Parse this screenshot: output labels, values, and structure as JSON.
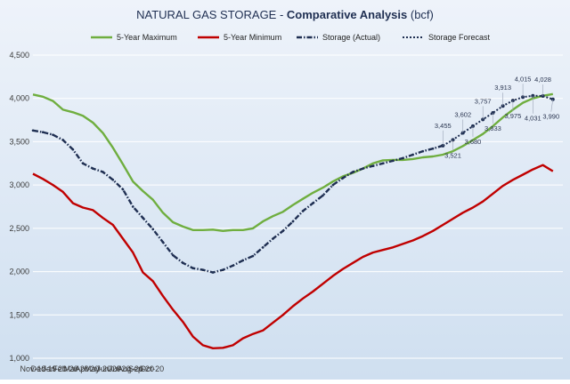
{
  "chart_data": {
    "type": "line",
    "title_prefix": "NATURAL GAS STORAGE - ",
    "title_bold": "Comparative Analysis",
    "title_suffix": " (bcf)",
    "title": "NATURAL GAS STORAGE - Comparative Analysis (bcf)",
    "xlabel": "",
    "ylabel": "",
    "ylim": [
      1000,
      4500
    ],
    "y_ticks": [
      "1,000",
      "1,500",
      "2,000",
      "2,500",
      "3,000",
      "3,500",
      "4,000",
      "4,500"
    ],
    "x_ticks": [
      "Nov-19",
      "Dec-19",
      "Jan-20",
      "Feb-20",
      "Mar-20",
      "Apr-20",
      "May-20",
      "Jun-20",
      "Jul-20",
      "Aug-20",
      "Sep-20",
      "Oct-20"
    ],
    "grid": true,
    "legend_position": "top",
    "colors": {
      "max": "#6fae3f",
      "min": "#c00000",
      "actual": "#1f2f52",
      "forecast": "#1f2f52"
    },
    "series": [
      {
        "name": "5-Year Maximum",
        "key": "max",
        "values": [
          [
            0,
            4045
          ],
          [
            4,
            4020
          ],
          [
            8,
            3970
          ],
          [
            12,
            3870
          ],
          [
            16,
            3840
          ],
          [
            20,
            3800
          ],
          [
            24,
            3720
          ],
          [
            28,
            3600
          ],
          [
            32,
            3430
          ],
          [
            36,
            3240
          ],
          [
            40,
            3040
          ],
          [
            44,
            2930
          ],
          [
            48,
            2830
          ],
          [
            52,
            2680
          ],
          [
            56,
            2570
          ],
          [
            60,
            2520
          ],
          [
            64,
            2480
          ],
          [
            68,
            2480
          ],
          [
            72,
            2485
          ],
          [
            76,
            2470
          ],
          [
            80,
            2480
          ],
          [
            84,
            2480
          ],
          [
            88,
            2500
          ],
          [
            92,
            2580
          ],
          [
            96,
            2640
          ],
          [
            100,
            2690
          ],
          [
            104,
            2770
          ],
          [
            108,
            2840
          ],
          [
            112,
            2910
          ],
          [
            116,
            2970
          ],
          [
            120,
            3040
          ],
          [
            124,
            3100
          ],
          [
            128,
            3140
          ],
          [
            132,
            3190
          ],
          [
            136,
            3250
          ],
          [
            140,
            3285
          ],
          [
            144,
            3290
          ],
          [
            148,
            3290
          ],
          [
            152,
            3300
          ],
          [
            156,
            3320
          ],
          [
            160,
            3330
          ],
          [
            164,
            3350
          ],
          [
            168,
            3390
          ],
          [
            172,
            3450
          ],
          [
            176,
            3520
          ],
          [
            180,
            3590
          ],
          [
            184,
            3680
          ],
          [
            188,
            3780
          ],
          [
            192,
            3870
          ],
          [
            196,
            3950
          ],
          [
            200,
            4000
          ],
          [
            204,
            4030
          ],
          [
            208,
            4050
          ]
        ]
      },
      {
        "name": "5-Year Minimum",
        "key": "min",
        "values": [
          [
            0,
            3130
          ],
          [
            4,
            3070
          ],
          [
            8,
            3000
          ],
          [
            12,
            2920
          ],
          [
            16,
            2790
          ],
          [
            20,
            2740
          ],
          [
            24,
            2710
          ],
          [
            28,
            2620
          ],
          [
            32,
            2540
          ],
          [
            36,
            2380
          ],
          [
            40,
            2220
          ],
          [
            44,
            1990
          ],
          [
            48,
            1890
          ],
          [
            52,
            1720
          ],
          [
            56,
            1560
          ],
          [
            60,
            1420
          ],
          [
            64,
            1250
          ],
          [
            68,
            1150
          ],
          [
            72,
            1115
          ],
          [
            76,
            1120
          ],
          [
            80,
            1150
          ],
          [
            84,
            1230
          ],
          [
            88,
            1280
          ],
          [
            92,
            1320
          ],
          [
            96,
            1410
          ],
          [
            100,
            1500
          ],
          [
            104,
            1600
          ],
          [
            108,
            1690
          ],
          [
            112,
            1770
          ],
          [
            116,
            1860
          ],
          [
            120,
            1950
          ],
          [
            124,
            2030
          ],
          [
            128,
            2100
          ],
          [
            132,
            2170
          ],
          [
            136,
            2220
          ],
          [
            140,
            2250
          ],
          [
            144,
            2280
          ],
          [
            148,
            2320
          ],
          [
            152,
            2360
          ],
          [
            156,
            2410
          ],
          [
            160,
            2470
          ],
          [
            164,
            2540
          ],
          [
            168,
            2610
          ],
          [
            172,
            2680
          ],
          [
            176,
            2740
          ],
          [
            180,
            2810
          ],
          [
            184,
            2900
          ],
          [
            188,
            2990
          ],
          [
            192,
            3060
          ],
          [
            196,
            3120
          ],
          [
            200,
            3180
          ],
          [
            204,
            3230
          ],
          [
            208,
            3160
          ]
        ]
      },
      {
        "name": "Storage (Actual)",
        "key": "actual",
        "values": [
          [
            0,
            3630
          ],
          [
            4,
            3610
          ],
          [
            8,
            3580
          ],
          [
            12,
            3520
          ],
          [
            16,
            3410
          ],
          [
            20,
            3250
          ],
          [
            24,
            3190
          ],
          [
            28,
            3150
          ],
          [
            32,
            3060
          ],
          [
            36,
            2950
          ],
          [
            40,
            2750
          ],
          [
            44,
            2620
          ],
          [
            48,
            2490
          ],
          [
            52,
            2340
          ],
          [
            56,
            2190
          ],
          [
            60,
            2100
          ],
          [
            64,
            2040
          ],
          [
            68,
            2020
          ],
          [
            72,
            1990
          ],
          [
            76,
            2020
          ],
          [
            80,
            2070
          ],
          [
            84,
            2130
          ],
          [
            88,
            2180
          ],
          [
            92,
            2280
          ],
          [
            96,
            2380
          ],
          [
            100,
            2470
          ],
          [
            104,
            2580
          ],
          [
            108,
            2700
          ],
          [
            112,
            2790
          ],
          [
            116,
            2880
          ],
          [
            120,
            3000
          ],
          [
            124,
            3080
          ],
          [
            128,
            3150
          ],
          [
            132,
            3190
          ],
          [
            136,
            3220
          ],
          [
            140,
            3250
          ],
          [
            144,
            3280
          ],
          [
            148,
            3310
          ],
          [
            152,
            3350
          ],
          [
            156,
            3390
          ],
          [
            160,
            3420
          ],
          [
            164,
            3455
          ]
        ]
      },
      {
        "name": "Storage Forecast",
        "key": "forecast",
        "values": [
          [
            164,
            3455
          ],
          [
            168,
            3521
          ],
          [
            172,
            3602
          ],
          [
            176,
            3680
          ],
          [
            180,
            3757
          ],
          [
            184,
            3833
          ],
          [
            188,
            3913
          ],
          [
            192,
            3975
          ],
          [
            196,
            4015
          ],
          [
            200,
            4031
          ],
          [
            204,
            4028
          ],
          [
            208,
            3990
          ]
        ]
      }
    ],
    "forecast_labels": [
      {
        "x": 164,
        "value": 3455,
        "text": "3,455"
      },
      {
        "x": 168,
        "value": 3521,
        "text": "3,521"
      },
      {
        "x": 172,
        "value": 3602,
        "text": "3,602"
      },
      {
        "x": 176,
        "value": 3680,
        "text": "3,680"
      },
      {
        "x": 180,
        "value": 3757,
        "text": "3,757"
      },
      {
        "x": 184,
        "value": 3833,
        "text": "3,833"
      },
      {
        "x": 188,
        "value": 3913,
        "text": "3,913"
      },
      {
        "x": 192,
        "value": 3975,
        "text": "3,975"
      },
      {
        "x": 196,
        "value": 4015,
        "text": "4,015"
      },
      {
        "x": 200,
        "value": 4031,
        "text": "4,031"
      },
      {
        "x": 204,
        "value": 4028,
        "text": "4,028"
      },
      {
        "x": 208,
        "value": 3990,
        "text": "3,990"
      }
    ]
  }
}
